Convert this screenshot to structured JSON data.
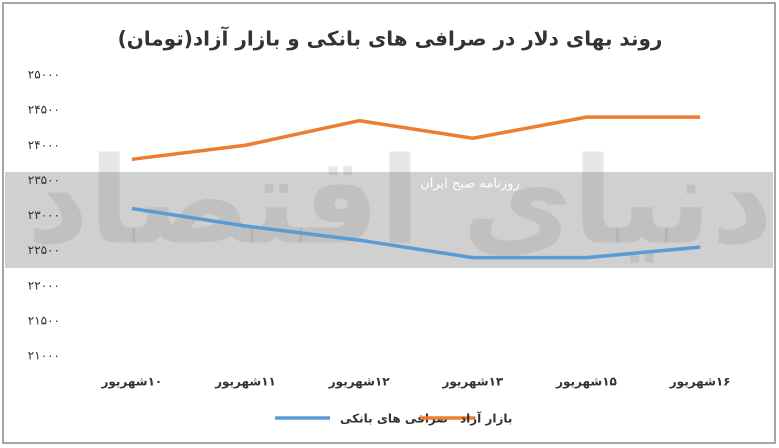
{
  "chart_data": {
    "type": "line",
    "title": "روند بهای دلار در صرافی های بانکی و بازار آزاد(تومان)",
    "watermarks": [
      "روزنامه صبح ایران",
      "دنیای اقتصاد"
    ],
    "categories": [
      "۱۰شهریور",
      "۱۱شهریور",
      "۱۲شهریور",
      "۱۳شهریور",
      "۱۵شهریور",
      "۱۶شهریور"
    ],
    "series": [
      {
        "name": "صرافی های بانکی",
        "color": "#5b9bd5",
        "values": [
          23100,
          22850,
          22650,
          22400,
          22400,
          22550
        ]
      },
      {
        "name": "بازار آزاد",
        "color": "#ed7d31",
        "values": [
          23800,
          24000,
          24350,
          24100,
          24400,
          24400
        ]
      }
    ],
    "ylim": [
      21000,
      25000
    ],
    "yticks": [
      {
        "value": 21000,
        "label": "۲۱۰۰۰"
      },
      {
        "value": 21500,
        "label": "۲۱۵۰۰"
      },
      {
        "value": 22000,
        "label": "۲۲۰۰۰"
      },
      {
        "value": 22500,
        "label": "۲۲۵۰۰"
      },
      {
        "value": 23000,
        "label": "۲۳۰۰۰"
      },
      {
        "value": 23500,
        "label": "۲۳۵۰۰"
      },
      {
        "value": 24000,
        "label": "۲۴۰۰۰"
      },
      {
        "value": 24500,
        "label": "۲۴۵۰۰"
      },
      {
        "value": 25000,
        "label": "۲۵۰۰۰"
      }
    ],
    "grid": false
  }
}
